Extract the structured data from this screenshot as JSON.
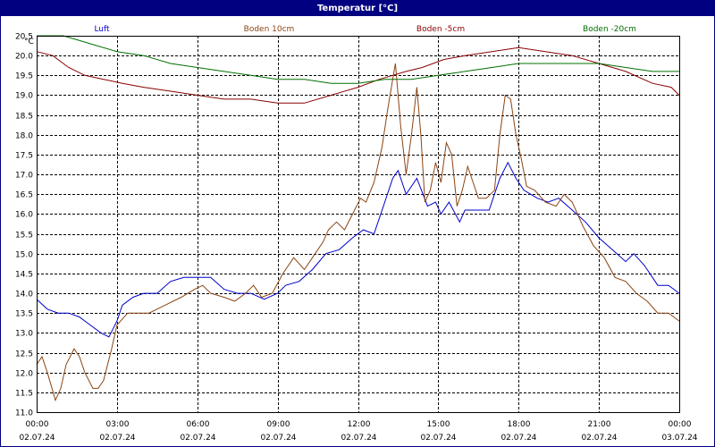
{
  "window": {
    "title": "Temperatur [°C]"
  },
  "colors": {
    "title_bg": "#000080",
    "luft": "#0000CC",
    "boden10": "#8B4513",
    "boden_minus5": "#8B0000",
    "boden_minus20": "#007000",
    "grid": "#000000"
  },
  "chart_data": {
    "type": "line",
    "title": "Temperatur [°C]",
    "ylabel": "°C",
    "ylim": [
      11.0,
      20.5
    ],
    "yticks": [
      "20.5",
      "20.0",
      "19.5",
      "19.0",
      "18.5",
      "18.0",
      "17.5",
      "17.0",
      "16.5",
      "16.0",
      "15.5",
      "15.0",
      "14.5",
      "14.0",
      "13.5",
      "13.0",
      "12.5",
      "12.0",
      "11.5",
      "11.0"
    ],
    "xlim": [
      0,
      24
    ],
    "xticks": [
      {
        "time": "00:00",
        "date": "02.07.24"
      },
      {
        "time": "03:00",
        "date": "02.07.24"
      },
      {
        "time": "06:00",
        "date": "02.07.24"
      },
      {
        "time": "09:00",
        "date": "02.07.24"
      },
      {
        "time": "12:00",
        "date": "02.07.24"
      },
      {
        "time": "15:00",
        "date": "02.07.24"
      },
      {
        "time": "18:00",
        "date": "02.07.24"
      },
      {
        "time": "21:00",
        "date": "02.07.24"
      },
      {
        "time": "00:00",
        "date": "03.07.24"
      }
    ],
    "grid": true,
    "legend_position": "top",
    "series": [
      {
        "name": "Luft",
        "color_key": "luft",
        "points": [
          [
            0,
            13.85
          ],
          [
            0.4,
            13.6
          ],
          [
            0.8,
            13.5
          ],
          [
            1.2,
            13.5
          ],
          [
            1.6,
            13.4
          ],
          [
            2.0,
            13.2
          ],
          [
            2.4,
            13.0
          ],
          [
            2.7,
            12.9
          ],
          [
            3.0,
            13.3
          ],
          [
            3.2,
            13.7
          ],
          [
            3.6,
            13.9
          ],
          [
            4.0,
            14.0
          ],
          [
            4.5,
            14.0
          ],
          [
            5.0,
            14.3
          ],
          [
            5.5,
            14.4
          ],
          [
            6.0,
            14.4
          ],
          [
            6.5,
            14.4
          ],
          [
            7.0,
            14.1
          ],
          [
            7.5,
            14.0
          ],
          [
            8.0,
            14.0
          ],
          [
            8.5,
            13.85
          ],
          [
            9.0,
            14.0
          ],
          [
            9.3,
            14.2
          ],
          [
            9.8,
            14.3
          ],
          [
            10.3,
            14.6
          ],
          [
            10.8,
            15.0
          ],
          [
            11.3,
            15.1
          ],
          [
            11.8,
            15.4
          ],
          [
            12.2,
            15.6
          ],
          [
            12.6,
            15.5
          ],
          [
            13.0,
            16.3
          ],
          [
            13.3,
            16.9
          ],
          [
            13.5,
            17.1
          ],
          [
            13.8,
            16.5
          ],
          [
            14.2,
            16.9
          ],
          [
            14.6,
            16.2
          ],
          [
            14.9,
            16.3
          ],
          [
            15.1,
            16.0
          ],
          [
            15.4,
            16.3
          ],
          [
            15.8,
            15.8
          ],
          [
            16.0,
            16.1
          ],
          [
            16.4,
            16.1
          ],
          [
            16.9,
            16.1
          ],
          [
            17.3,
            16.9
          ],
          [
            17.6,
            17.3
          ],
          [
            17.9,
            16.9
          ],
          [
            18.2,
            16.6
          ],
          [
            18.7,
            16.4
          ],
          [
            19.1,
            16.3
          ],
          [
            19.5,
            16.4
          ],
          [
            20.0,
            16.1
          ],
          [
            20.5,
            15.8
          ],
          [
            21.0,
            15.4
          ],
          [
            21.5,
            15.1
          ],
          [
            22.0,
            14.8
          ],
          [
            22.3,
            15.0
          ],
          [
            22.7,
            14.7
          ],
          [
            23.2,
            14.2
          ],
          [
            23.6,
            14.2
          ],
          [
            24.0,
            14.0
          ]
        ]
      },
      {
        "name": "Boden 10cm",
        "color_key": "boden10",
        "points": [
          [
            0,
            12.2
          ],
          [
            0.2,
            12.4
          ],
          [
            0.4,
            12.0
          ],
          [
            0.7,
            11.3
          ],
          [
            0.9,
            11.6
          ],
          [
            1.1,
            12.2
          ],
          [
            1.4,
            12.6
          ],
          [
            1.6,
            12.4
          ],
          [
            1.8,
            12.0
          ],
          [
            2.1,
            11.6
          ],
          [
            2.3,
            11.6
          ],
          [
            2.5,
            11.8
          ],
          [
            2.8,
            12.6
          ],
          [
            3.0,
            13.2
          ],
          [
            3.4,
            13.5
          ],
          [
            3.8,
            13.5
          ],
          [
            4.2,
            13.5
          ],
          [
            4.8,
            13.7
          ],
          [
            5.4,
            13.9
          ],
          [
            5.9,
            14.1
          ],
          [
            6.2,
            14.2
          ],
          [
            6.5,
            14.0
          ],
          [
            7.0,
            13.9
          ],
          [
            7.4,
            13.8
          ],
          [
            7.8,
            14.0
          ],
          [
            8.1,
            14.2
          ],
          [
            8.4,
            13.9
          ],
          [
            8.8,
            14.0
          ],
          [
            9.2,
            14.5
          ],
          [
            9.6,
            14.9
          ],
          [
            10.0,
            14.6
          ],
          [
            10.3,
            14.9
          ],
          [
            10.7,
            15.3
          ],
          [
            10.9,
            15.6
          ],
          [
            11.2,
            15.8
          ],
          [
            11.5,
            15.6
          ],
          [
            11.8,
            16.0
          ],
          [
            12.1,
            16.4
          ],
          [
            12.3,
            16.3
          ],
          [
            12.6,
            16.8
          ],
          [
            12.9,
            17.7
          ],
          [
            13.1,
            18.6
          ],
          [
            13.3,
            19.4
          ],
          [
            13.4,
            19.8
          ],
          [
            13.6,
            18.2
          ],
          [
            13.8,
            17.0
          ],
          [
            14.0,
            18.0
          ],
          [
            14.2,
            19.2
          ],
          [
            14.35,
            18.0
          ],
          [
            14.5,
            16.3
          ],
          [
            14.7,
            16.6
          ],
          [
            14.9,
            17.3
          ],
          [
            15.1,
            16.8
          ],
          [
            15.3,
            17.8
          ],
          [
            15.5,
            17.5
          ],
          [
            15.7,
            16.2
          ],
          [
            15.9,
            16.6
          ],
          [
            16.1,
            17.2
          ],
          [
            16.3,
            16.8
          ],
          [
            16.5,
            16.4
          ],
          [
            16.8,
            16.4
          ],
          [
            17.1,
            16.6
          ],
          [
            17.3,
            18.0
          ],
          [
            17.5,
            19.0
          ],
          [
            17.7,
            18.9
          ],
          [
            17.9,
            18.0
          ],
          [
            18.1,
            17.4
          ],
          [
            18.3,
            16.7
          ],
          [
            18.6,
            16.6
          ],
          [
            19.0,
            16.3
          ],
          [
            19.4,
            16.2
          ],
          [
            19.7,
            16.5
          ],
          [
            20.0,
            16.3
          ],
          [
            20.4,
            15.7
          ],
          [
            20.8,
            15.2
          ],
          [
            21.2,
            14.9
          ],
          [
            21.6,
            14.4
          ],
          [
            22.0,
            14.3
          ],
          [
            22.4,
            14.0
          ],
          [
            22.8,
            13.8
          ],
          [
            23.2,
            13.5
          ],
          [
            23.6,
            13.5
          ],
          [
            24.0,
            13.3
          ]
        ]
      },
      {
        "name": "Boden -5cm",
        "color_key": "boden_minus5",
        "points": [
          [
            0,
            20.1
          ],
          [
            0.6,
            20.0
          ],
          [
            1.2,
            19.7
          ],
          [
            1.8,
            19.5
          ],
          [
            2.5,
            19.4
          ],
          [
            3.2,
            19.3
          ],
          [
            4.0,
            19.2
          ],
          [
            5.0,
            19.1
          ],
          [
            6.0,
            19.0
          ],
          [
            7.0,
            18.9
          ],
          [
            8.0,
            18.9
          ],
          [
            9.0,
            18.8
          ],
          [
            10.0,
            18.8
          ],
          [
            11.0,
            19.0
          ],
          [
            12.0,
            19.2
          ],
          [
            12.8,
            19.4
          ],
          [
            13.3,
            19.5
          ],
          [
            13.8,
            19.6
          ],
          [
            14.4,
            19.7
          ],
          [
            15.2,
            19.9
          ],
          [
            16.0,
            20.0
          ],
          [
            17.0,
            20.1
          ],
          [
            18.0,
            20.2
          ],
          [
            19.0,
            20.1
          ],
          [
            20.0,
            20.0
          ],
          [
            21.0,
            19.8
          ],
          [
            22.0,
            19.6
          ],
          [
            23.0,
            19.3
          ],
          [
            23.7,
            19.2
          ],
          [
            24.0,
            19.0
          ]
        ]
      },
      {
        "name": "Boden -20cm",
        "color_key": "boden_minus20",
        "points": [
          [
            0,
            20.5
          ],
          [
            1.0,
            20.5
          ],
          [
            2.0,
            20.3
          ],
          [
            3.0,
            20.1
          ],
          [
            4.0,
            20.0
          ],
          [
            5.0,
            19.8
          ],
          [
            6.0,
            19.7
          ],
          [
            7.0,
            19.6
          ],
          [
            8.0,
            19.5
          ],
          [
            9.0,
            19.4
          ],
          [
            10.0,
            19.4
          ],
          [
            11.0,
            19.3
          ],
          [
            12.0,
            19.3
          ],
          [
            13.0,
            19.4
          ],
          [
            14.0,
            19.4
          ],
          [
            15.0,
            19.5
          ],
          [
            16.0,
            19.6
          ],
          [
            17.0,
            19.7
          ],
          [
            18.0,
            19.8
          ],
          [
            19.0,
            19.8
          ],
          [
            20.0,
            19.8
          ],
          [
            21.0,
            19.8
          ],
          [
            22.0,
            19.7
          ],
          [
            23.0,
            19.6
          ],
          [
            24.0,
            19.6
          ]
        ]
      }
    ]
  }
}
